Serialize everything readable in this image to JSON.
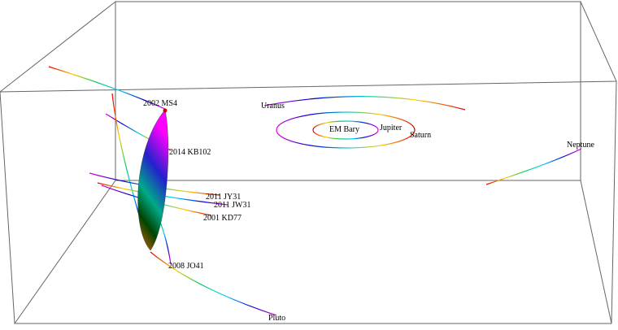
{
  "labels": [
    "2002 MS4",
    "2014 KB102",
    "2011 JY31",
    "2011 JW31",
    "2001 KD77",
    "2008 JO41",
    "Pluto",
    "Uranus",
    "EM Bary",
    "Jupiter",
    "Saturn",
    "Neptune"
  ]
}
